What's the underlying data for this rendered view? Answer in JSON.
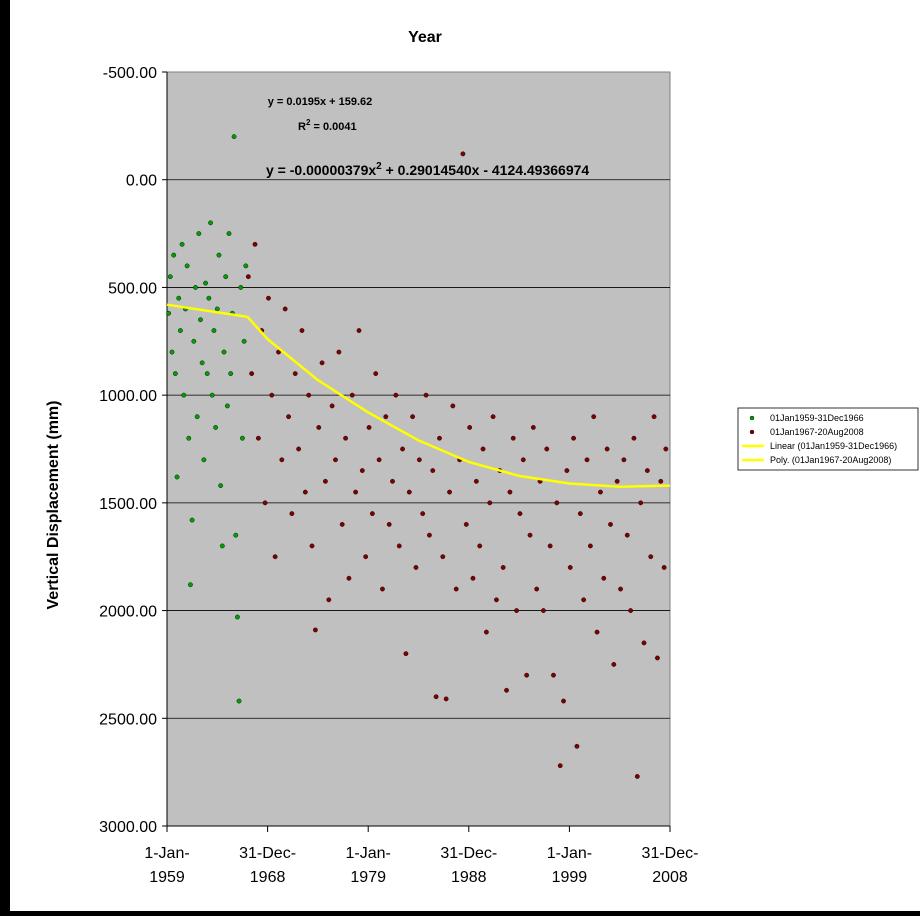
{
  "chart_data": {
    "type": "scatter",
    "title": "Year",
    "xlabel": "",
    "ylabel": "Vertical Displacement (mm)",
    "y_reversed": true,
    "ylim": [
      -500,
      3000
    ],
    "yticks": [
      "-500.00",
      "0.00",
      "500.00",
      "1000.00",
      "1500.00",
      "2000.00",
      "2500.00",
      "3000.00"
    ],
    "xlim": [
      "1959-01-01",
      "2008-12-31"
    ],
    "xticks": [
      {
        "date": "1959-01-01",
        "line1": "1-Jan-",
        "line2": "1959"
      },
      {
        "date": "1968-12-31",
        "line1": "31-Dec-",
        "line2": "1968"
      },
      {
        "date": "1979-01-01",
        "line1": "1-Jan-",
        "line2": "1979"
      },
      {
        "date": "1988-12-31",
        "line1": "31-Dec-",
        "line2": "1988"
      },
      {
        "date": "1999-01-01",
        "line1": "1-Jan-",
        "line2": "1999"
      },
      {
        "date": "2008-12-31",
        "line1": "31-Dec-",
        "line2": "2008"
      }
    ],
    "grid": true,
    "legend_position": "right",
    "plot_background": "#c0c0c0",
    "series": [
      {
        "name": "01Jan1959-31Dec1966",
        "kind": "scatter",
        "color": "#00a000",
        "points": [
          [
            "1959-03-01",
            620
          ],
          [
            "1959-05-01",
            450
          ],
          [
            "1959-07-01",
            800
          ],
          [
            "1959-09-01",
            350
          ],
          [
            "1959-11-01",
            900
          ],
          [
            "1960-01-01",
            1380
          ],
          [
            "1960-03-01",
            550
          ],
          [
            "1960-05-01",
            700
          ],
          [
            "1960-07-01",
            300
          ],
          [
            "1960-09-01",
            1000
          ],
          [
            "1960-11-01",
            600
          ],
          [
            "1961-01-01",
            400
          ],
          [
            "1961-03-01",
            1200
          ],
          [
            "1961-05-01",
            1880
          ],
          [
            "1961-07-01",
            1580
          ],
          [
            "1961-09-01",
            750
          ],
          [
            "1961-11-01",
            500
          ],
          [
            "1962-01-01",
            1100
          ],
          [
            "1962-03-01",
            250
          ],
          [
            "1962-05-01",
            650
          ],
          [
            "1962-07-01",
            850
          ],
          [
            "1962-09-01",
            1300
          ],
          [
            "1962-11-01",
            480
          ],
          [
            "1963-01-01",
            900
          ],
          [
            "1963-03-01",
            550
          ],
          [
            "1963-05-01",
            200
          ],
          [
            "1963-07-01",
            1000
          ],
          [
            "1963-09-01",
            700
          ],
          [
            "1963-11-01",
            1150
          ],
          [
            "1964-01-01",
            600
          ],
          [
            "1964-03-01",
            350
          ],
          [
            "1964-05-01",
            1420
          ],
          [
            "1964-07-01",
            1700
          ],
          [
            "1964-09-01",
            800
          ],
          [
            "1964-11-01",
            450
          ],
          [
            "1965-01-01",
            1050
          ],
          [
            "1965-03-01",
            250
          ],
          [
            "1965-05-01",
            900
          ],
          [
            "1965-07-01",
            620
          ],
          [
            "1965-09-01",
            -200
          ],
          [
            "1965-11-01",
            1650
          ],
          [
            "1966-01-01",
            2030
          ],
          [
            "1966-03-01",
            2420
          ],
          [
            "1966-05-01",
            500
          ],
          [
            "1966-07-01",
            1200
          ],
          [
            "1966-09-01",
            750
          ],
          [
            "1966-11-01",
            400
          ]
        ]
      },
      {
        "name": "01Jan1967-20Aug2008",
        "kind": "scatter",
        "color": "#800000",
        "points": [
          [
            "1967-02-01",
            450
          ],
          [
            "1967-06-01",
            900
          ],
          [
            "1967-10-01",
            300
          ],
          [
            "1968-02-01",
            1200
          ],
          [
            "1968-06-01",
            700
          ],
          [
            "1968-10-01",
            1500
          ],
          [
            "1969-02-01",
            550
          ],
          [
            "1969-06-01",
            1000
          ],
          [
            "1969-10-01",
            1750
          ],
          [
            "1970-02-01",
            800
          ],
          [
            "1970-06-01",
            1300
          ],
          [
            "1970-10-01",
            600
          ],
          [
            "1971-02-01",
            1100
          ],
          [
            "1971-06-01",
            1550
          ],
          [
            "1971-10-01",
            900
          ],
          [
            "1972-02-01",
            1250
          ],
          [
            "1972-06-01",
            700
          ],
          [
            "1972-10-01",
            1450
          ],
          [
            "1973-02-01",
            1000
          ],
          [
            "1973-06-01",
            1700
          ],
          [
            "1973-10-01",
            2090
          ],
          [
            "1974-02-01",
            1150
          ],
          [
            "1974-06-01",
            850
          ],
          [
            "1974-10-01",
            1400
          ],
          [
            "1975-02-01",
            1950
          ],
          [
            "1975-06-01",
            1050
          ],
          [
            "1975-10-01",
            1300
          ],
          [
            "1976-02-01",
            800
          ],
          [
            "1976-06-01",
            1600
          ],
          [
            "1976-10-01",
            1200
          ],
          [
            "1977-02-01",
            1850
          ],
          [
            "1977-06-01",
            1000
          ],
          [
            "1977-10-01",
            1450
          ],
          [
            "1978-02-01",
            700
          ],
          [
            "1978-06-01",
            1350
          ],
          [
            "1978-10-01",
            1750
          ],
          [
            "1979-02-01",
            1150
          ],
          [
            "1979-06-01",
            1550
          ],
          [
            "1979-10-01",
            900
          ],
          [
            "1980-02-01",
            1300
          ],
          [
            "1980-06-01",
            1900
          ],
          [
            "1980-10-01",
            1100
          ],
          [
            "1981-02-01",
            1600
          ],
          [
            "1981-06-01",
            1400
          ],
          [
            "1981-10-01",
            1000
          ],
          [
            "1982-02-01",
            1700
          ],
          [
            "1982-06-01",
            1250
          ],
          [
            "1982-10-01",
            2200
          ],
          [
            "1983-02-01",
            1450
          ],
          [
            "1983-06-01",
            1100
          ],
          [
            "1983-10-01",
            1800
          ],
          [
            "1984-02-01",
            1300
          ],
          [
            "1984-06-01",
            1550
          ],
          [
            "1984-10-01",
            1000
          ],
          [
            "1985-02-01",
            1650
          ],
          [
            "1985-06-01",
            1350
          ],
          [
            "1985-10-01",
            2400
          ],
          [
            "1986-02-01",
            1200
          ],
          [
            "1986-06-01",
            1750
          ],
          [
            "1986-10-01",
            2410
          ],
          [
            "1987-02-01",
            1450
          ],
          [
            "1987-06-01",
            1050
          ],
          [
            "1987-10-01",
            1900
          ],
          [
            "1988-02-01",
            1300
          ],
          [
            "1988-06-01",
            -120
          ],
          [
            "1988-10-01",
            1600
          ],
          [
            "1989-02-01",
            1150
          ],
          [
            "1989-06-01",
            1850
          ],
          [
            "1989-10-01",
            1400
          ],
          [
            "1990-02-01",
            1700
          ],
          [
            "1990-06-01",
            1250
          ],
          [
            "1990-10-01",
            2100
          ],
          [
            "1991-02-01",
            1500
          ],
          [
            "1991-06-01",
            1100
          ],
          [
            "1991-10-01",
            1950
          ],
          [
            "1992-02-01",
            1350
          ],
          [
            "1992-06-01",
            1800
          ],
          [
            "1992-10-01",
            2370
          ],
          [
            "1993-02-01",
            1450
          ],
          [
            "1993-06-01",
            1200
          ],
          [
            "1993-10-01",
            2000
          ],
          [
            "1994-02-01",
            1550
          ],
          [
            "1994-06-01",
            1300
          ],
          [
            "1994-10-01",
            2300
          ],
          [
            "1995-02-01",
            1650
          ],
          [
            "1995-06-01",
            1150
          ],
          [
            "1995-10-01",
            1900
          ],
          [
            "1996-02-01",
            1400
          ],
          [
            "1996-06-01",
            2000
          ],
          [
            "1996-10-01",
            1250
          ],
          [
            "1997-02-01",
            1700
          ],
          [
            "1997-06-01",
            2300
          ],
          [
            "1997-10-01",
            1500
          ],
          [
            "1998-02-01",
            2720
          ],
          [
            "1998-06-01",
            2420
          ],
          [
            "1998-10-01",
            1350
          ],
          [
            "1999-02-01",
            1800
          ],
          [
            "1999-06-01",
            1200
          ],
          [
            "1999-10-01",
            2630
          ],
          [
            "2000-02-01",
            1550
          ],
          [
            "2000-06-01",
            1950
          ],
          [
            "2000-10-01",
            1300
          ],
          [
            "2001-02-01",
            1700
          ],
          [
            "2001-06-01",
            1100
          ],
          [
            "2001-10-01",
            2100
          ],
          [
            "2002-02-01",
            1450
          ],
          [
            "2002-06-01",
            1850
          ],
          [
            "2002-10-01",
            1250
          ],
          [
            "2003-02-01",
            1600
          ],
          [
            "2003-06-01",
            2250
          ],
          [
            "2003-10-01",
            1400
          ],
          [
            "2004-02-01",
            1900
          ],
          [
            "2004-06-01",
            1300
          ],
          [
            "2004-10-01",
            1650
          ],
          [
            "2005-02-01",
            2000
          ],
          [
            "2005-06-01",
            1200
          ],
          [
            "2005-10-01",
            2770
          ],
          [
            "2006-02-01",
            1500
          ],
          [
            "2006-06-01",
            2150
          ],
          [
            "2006-10-01",
            1350
          ],
          [
            "2007-02-01",
            1750
          ],
          [
            "2007-06-01",
            1100
          ],
          [
            "2007-10-01",
            2220
          ],
          [
            "2008-02-01",
            1400
          ],
          [
            "2008-06-01",
            1800
          ],
          [
            "2008-08-01",
            1250
          ]
        ]
      },
      {
        "name": "Linear (01Jan1959-31Dec1966)",
        "kind": "line",
        "color": "#ffff00",
        "x": [
          "1959-01-01",
          "1966-12-31"
        ],
        "y": [
          580,
          637
        ]
      },
      {
        "name": "Poly. (01Jan1967-20Aug2008)",
        "kind": "line",
        "color": "#ffff00",
        "x": [
          "1966-12-31",
          "1968-12-31",
          "1973-12-31",
          "1978-12-31",
          "1983-12-31",
          "1988-12-31",
          "1993-12-31",
          "1998-12-31",
          "2003-12-31",
          "2008-12-31"
        ],
        "y": [
          637,
          740,
          930,
          1080,
          1210,
          1310,
          1375,
          1410,
          1425,
          1420
        ]
      }
    ],
    "annotations": [
      "y = 0.0195x + 159.62",
      "R",
      "2",
      " = 0.0041",
      "y = -0.00000379x",
      "2",
      " + 0.29014540x - 4124.49366974"
    ]
  }
}
